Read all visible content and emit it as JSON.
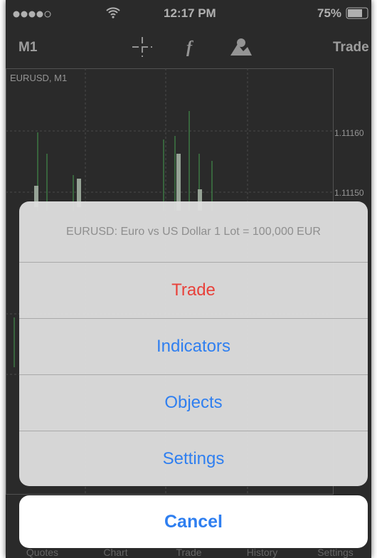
{
  "status_bar": {
    "time": "12:17 PM",
    "battery": "75%"
  },
  "toolbar": {
    "left": "M1",
    "right": "Trade"
  },
  "chart": {
    "symbol": "EURUSD, M1",
    "price_labels": [
      "1.11160",
      "1.11150"
    ]
  },
  "action_sheet": {
    "title": "EURUSD: Euro vs US Dollar 1 Lot = 100,000 EUR",
    "items": [
      "Trade",
      "Indicators",
      "Objects",
      "Settings"
    ],
    "cancel": "Cancel"
  },
  "tab_bar": {
    "tabs": [
      "Quotes",
      "Chart",
      "Trade",
      "History",
      "Settings"
    ]
  }
}
